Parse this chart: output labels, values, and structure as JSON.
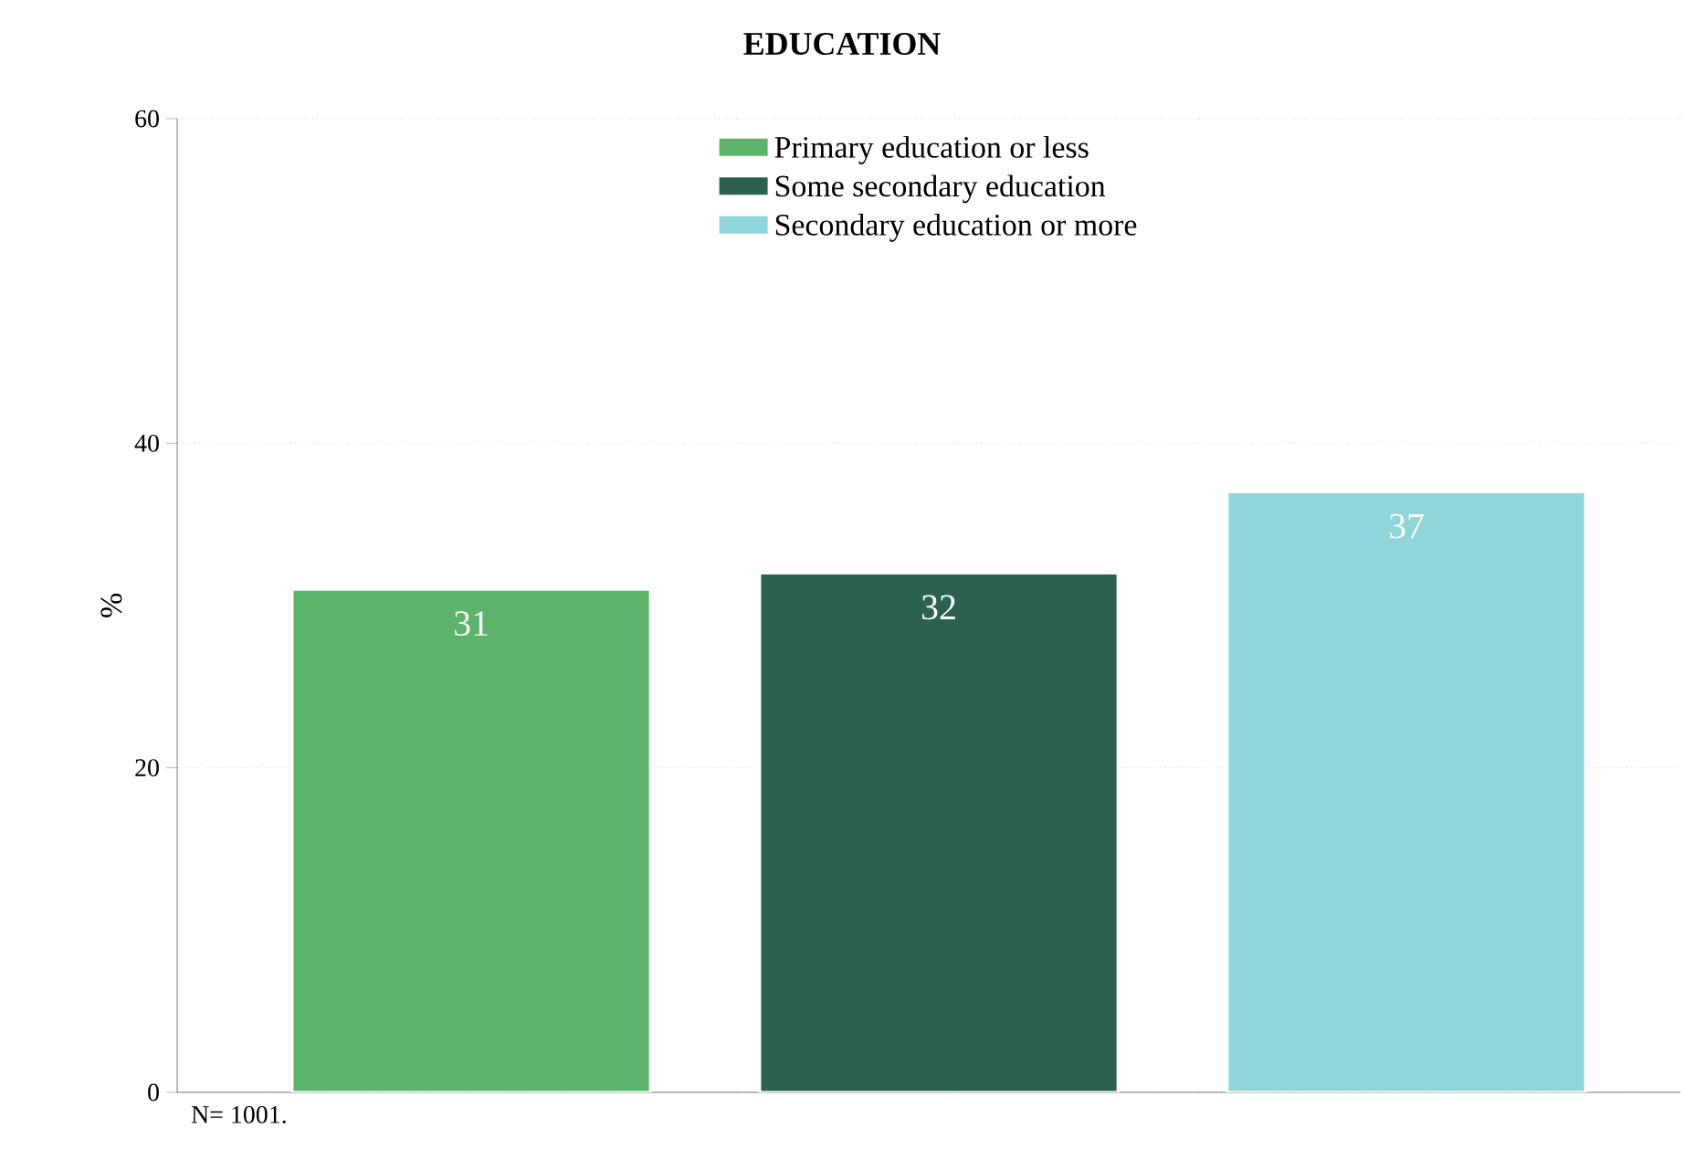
{
  "chart_data": {
    "type": "bar",
    "title": "EDUCATION",
    "ylabel": "%",
    "categories": [
      null,
      null,
      null
    ],
    "series": [
      {
        "name": "Primary education or less",
        "color": "#5cb46a",
        "values": [
          31,
          null,
          null
        ]
      },
      {
        "name": "Some secondary education",
        "color": "#2c6152",
        "values": [
          null,
          32,
          null
        ]
      },
      {
        "name": "Secondary education or more",
        "color": "#8fd5da",
        "values": [
          null,
          null,
          37
        ]
      }
    ],
    "ylim": [
      0,
      60
    ],
    "yticks": [
      0,
      20,
      40,
      60
    ],
    "grid": "y",
    "legend": "top",
    "data_labels": true,
    "annotations": [
      "N= 1001."
    ]
  }
}
